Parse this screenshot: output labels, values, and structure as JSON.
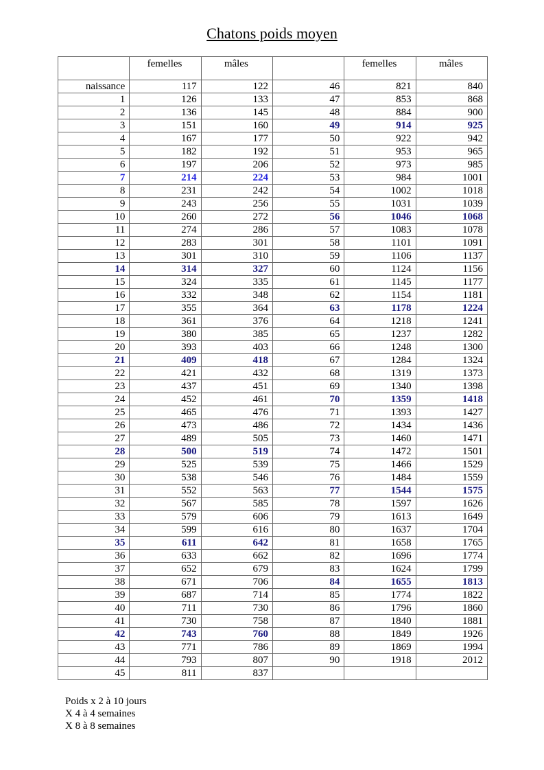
{
  "title": "Chatons poids moyen",
  "headers": [
    "",
    "femelles",
    "mâles",
    "",
    "femelles",
    "mâles"
  ],
  "highlight_color": "#1a1a80",
  "highlight_color_bright": "#2222dd",
  "highlight_days": [
    "7",
    "14",
    "21",
    "28",
    "35",
    "42",
    "49",
    "56",
    "63",
    "70",
    "77",
    "84"
  ],
  "left_rows": [
    [
      "naissance",
      "117",
      "122"
    ],
    [
      "1",
      "126",
      "133"
    ],
    [
      "2",
      "136",
      "145"
    ],
    [
      "3",
      "151",
      "160"
    ],
    [
      "4",
      "167",
      "177"
    ],
    [
      "5",
      "182",
      "192"
    ],
    [
      "6",
      "197",
      "206"
    ],
    [
      "7",
      "214",
      "224"
    ],
    [
      "8",
      "231",
      "242"
    ],
    [
      "9",
      "243",
      "256"
    ],
    [
      "10",
      "260",
      "272"
    ],
    [
      "11",
      "274",
      "286"
    ],
    [
      "12",
      "283",
      "301"
    ],
    [
      "13",
      "301",
      "310"
    ],
    [
      "14",
      "314",
      "327"
    ],
    [
      "15",
      "324",
      "335"
    ],
    [
      "16",
      "332",
      "348"
    ],
    [
      "17",
      "355",
      "364"
    ],
    [
      "18",
      "361",
      "376"
    ],
    [
      "19",
      "380",
      "385"
    ],
    [
      "20",
      "393",
      "403"
    ],
    [
      "21",
      "409",
      "418"
    ],
    [
      "22",
      "421",
      "432"
    ],
    [
      "23",
      "437",
      "451"
    ],
    [
      "24",
      "452",
      "461"
    ],
    [
      "25",
      "465",
      "476"
    ],
    [
      "26",
      "473",
      "486"
    ],
    [
      "27",
      "489",
      "505"
    ],
    [
      "28",
      "500",
      "519"
    ],
    [
      "29",
      "525",
      "539"
    ],
    [
      "30",
      "538",
      "546"
    ],
    [
      "31",
      "552",
      "563"
    ],
    [
      "32",
      "567",
      "585"
    ],
    [
      "33",
      "579",
      "606"
    ],
    [
      "34",
      "599",
      "616"
    ],
    [
      "35",
      "611",
      "642"
    ],
    [
      "36",
      "633",
      "662"
    ],
    [
      "37",
      "652",
      "679"
    ],
    [
      "38",
      "671",
      "706"
    ],
    [
      "39",
      "687",
      "714"
    ],
    [
      "40",
      "711",
      "730"
    ],
    [
      "41",
      "730",
      "758"
    ],
    [
      "42",
      "743",
      "760"
    ],
    [
      "43",
      "771",
      "786"
    ],
    [
      "44",
      "793",
      "807"
    ],
    [
      "45",
      "811",
      "837"
    ]
  ],
  "right_rows": [
    [
      "46",
      "821",
      "840"
    ],
    [
      "47",
      "853",
      "868"
    ],
    [
      "48",
      "884",
      "900"
    ],
    [
      "49",
      "914",
      "925"
    ],
    [
      "50",
      "922",
      "942"
    ],
    [
      "51",
      "953",
      "965"
    ],
    [
      "52",
      "973",
      "985"
    ],
    [
      "53",
      "984",
      "1001"
    ],
    [
      "54",
      "1002",
      "1018"
    ],
    [
      "55",
      "1031",
      "1039"
    ],
    [
      "56",
      "1046",
      "1068"
    ],
    [
      "57",
      "1083",
      "1078"
    ],
    [
      "58",
      "1101",
      "1091"
    ],
    [
      "59",
      "1106",
      "1137"
    ],
    [
      "60",
      "1124",
      "1156"
    ],
    [
      "61",
      "1145",
      "1177"
    ],
    [
      "62",
      "1154",
      "1181"
    ],
    [
      "63",
      "1178",
      "1224"
    ],
    [
      "64",
      "1218",
      "1241"
    ],
    [
      "65",
      "1237",
      "1282"
    ],
    [
      "66",
      "1248",
      "1300"
    ],
    [
      "67",
      "1284",
      "1324"
    ],
    [
      "68",
      "1319",
      "1373"
    ],
    [
      "69",
      "1340",
      "1398"
    ],
    [
      "70",
      "1359",
      "1418"
    ],
    [
      "71",
      "1393",
      "1427"
    ],
    [
      "72",
      "1434",
      "1436"
    ],
    [
      "73",
      "1460",
      "1471"
    ],
    [
      "74",
      "1472",
      "1501"
    ],
    [
      "75",
      "1466",
      "1529"
    ],
    [
      "76",
      "1484",
      "1559"
    ],
    [
      "77",
      "1544",
      "1575"
    ],
    [
      "78",
      "1597",
      "1626"
    ],
    [
      "79",
      "1613",
      "1649"
    ],
    [
      "80",
      "1637",
      "1704"
    ],
    [
      "81",
      "1658",
      "1765"
    ],
    [
      "82",
      "1696",
      "1774"
    ],
    [
      "83",
      "1624",
      "1799"
    ],
    [
      "84",
      "1655",
      "1813"
    ],
    [
      "85",
      "1774",
      "1822"
    ],
    [
      "86",
      "1796",
      "1860"
    ],
    [
      "87",
      "1840",
      "1881"
    ],
    [
      "88",
      "1849",
      "1926"
    ],
    [
      "89",
      "1869",
      "1994"
    ],
    [
      "90",
      "1918",
      "2012"
    ]
  ],
  "notes": [
    "Poids x 2 à 10 jours",
    "X 4 à 4 semaines",
    "X 8 à 8 semaines"
  ]
}
